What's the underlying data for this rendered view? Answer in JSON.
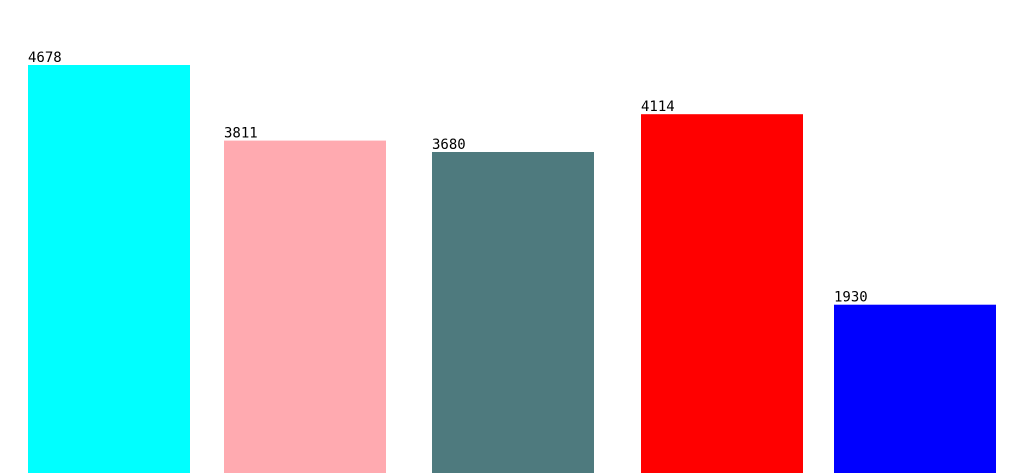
{
  "chart_data": {
    "type": "bar",
    "categories": [
      "",
      "",
      "",
      "",
      ""
    ],
    "values": [
      4678,
      3811,
      3680,
      4114,
      1930
    ],
    "colors": [
      "#00ffff",
      "#ffaab0",
      "#4e7a7e",
      "#ff0000",
      "#0000ff"
    ],
    "title": "",
    "xlabel": "",
    "ylabel": "",
    "ylim": [
      0,
      4678
    ],
    "grid": false,
    "legend": "none",
    "data_labels": [
      "4678",
      "3811",
      "3680",
      "4114",
      "1930"
    ]
  }
}
